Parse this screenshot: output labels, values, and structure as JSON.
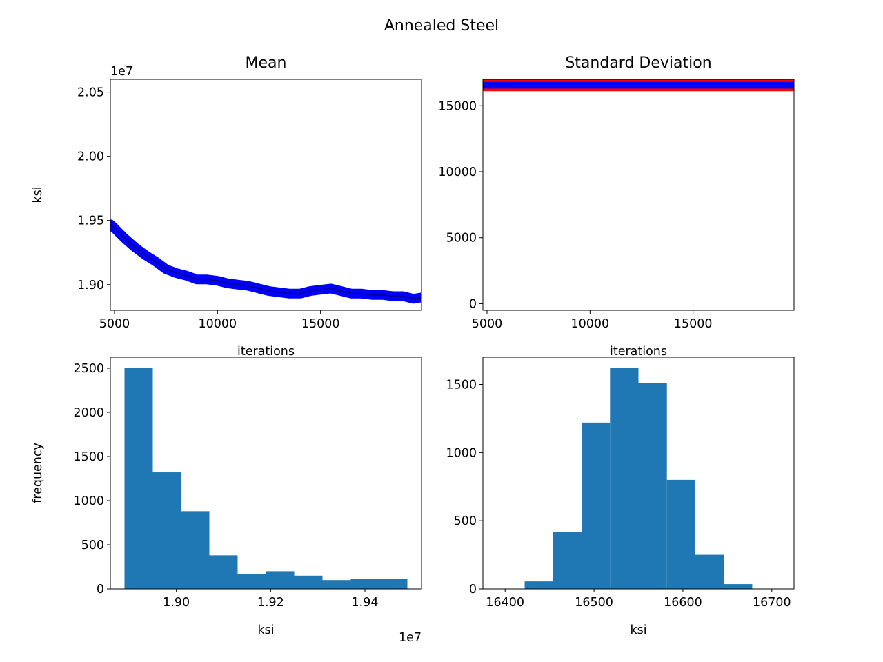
{
  "figure": {
    "suptitle": "Annealed Steel"
  },
  "chart_data": [
    {
      "id": "mean_trace",
      "type": "line",
      "title": "Mean",
      "xlabel": "iterations",
      "ylabel": "ksi",
      "y_offset_text": "1e7",
      "xlim": [
        4800,
        19900
      ],
      "ylim": [
        18800000,
        20600000
      ],
      "xticks": [
        5000,
        10000,
        15000
      ],
      "xtick_labels": [
        "5000",
        "10000",
        "15000"
      ],
      "yticks": [
        19000000,
        19500000,
        20000000,
        20500000
      ],
      "ytick_labels": [
        "1.90",
        "1.95",
        "2.00",
        "2.05"
      ],
      "colors": {
        "trace": "#0000ff"
      },
      "series": [
        {
          "x": [
            4800,
            5000,
            5500,
            6000,
            6500,
            7000,
            7500,
            8000,
            8500,
            9000,
            9500,
            10000,
            10500,
            11000,
            11500,
            12000,
            12500,
            13000,
            13500,
            14000,
            14500,
            15000,
            15500,
            16000,
            16500,
            17000,
            17500,
            18000,
            18500,
            19000,
            19500,
            19900
          ],
          "y": [
            19470000,
            19440000,
            19360000,
            19290000,
            19230000,
            19180000,
            19120000,
            19090000,
            19070000,
            19040000,
            19040000,
            19030000,
            19010000,
            19000000,
            18990000,
            18970000,
            18950000,
            18940000,
            18930000,
            18930000,
            18950000,
            18960000,
            18970000,
            18950000,
            18930000,
            18930000,
            18920000,
            18920000,
            18910000,
            18910000,
            18890000,
            18900000
          ]
        }
      ]
    },
    {
      "id": "std_trace",
      "type": "line",
      "title": "Standard Deviation",
      "xlabel": "iterations",
      "ylabel": "",
      "xlim": [
        4800,
        19900
      ],
      "ylim": [
        -500,
        17000
      ],
      "xticks": [
        5000,
        10000,
        15000
      ],
      "xtick_labels": [
        "5000",
        "10000",
        "15000"
      ],
      "yticks": [
        0,
        5000,
        10000,
        15000
      ],
      "ytick_labels": [
        "0",
        "5000",
        "10000",
        "15000"
      ],
      "colors": {
        "band": "#ff0000",
        "trace": "#0000ff"
      },
      "series": [
        {
          "x": [
            4800,
            19900
          ],
          "y_center": [
            16550,
            16550
          ],
          "band_low": 16100,
          "band_high": 17000,
          "trace_low": 16300,
          "trace_high": 16800
        }
      ]
    },
    {
      "id": "mean_hist",
      "type": "bar",
      "title": "",
      "xlabel": "ksi",
      "ylabel": "frequency",
      "x_offset_text": "1e7",
      "xlim": [
        18860000,
        19520000
      ],
      "ylim": [
        0,
        2625
      ],
      "xticks": [
        19000000,
        19200000,
        19400000
      ],
      "xtick_labels": [
        "1.90",
        "1.92",
        "1.94"
      ],
      "yticks": [
        0,
        500,
        1000,
        1500,
        2000,
        2500
      ],
      "ytick_labels": [
        "0",
        "500",
        "1000",
        "1500",
        "2000",
        "2500"
      ],
      "colors": {
        "bar": "#1f77b4"
      },
      "bin_edges": [
        18890000,
        18950000,
        19010000,
        19070000,
        19130000,
        19190000,
        19250000,
        19310000,
        19370000,
        19430000,
        19490000
      ],
      "values": [
        2500,
        1320,
        880,
        380,
        170,
        200,
        150,
        100,
        110,
        110
      ]
    },
    {
      "id": "std_hist",
      "type": "bar",
      "title": "",
      "xlabel": "ksi",
      "ylabel": "",
      "xlim": [
        16375,
        16725
      ],
      "ylim": [
        0,
        1700
      ],
      "xticks": [
        16400,
        16500,
        16600,
        16700
      ],
      "xtick_labels": [
        "16400",
        "16500",
        "16600",
        "16700"
      ],
      "yticks": [
        0,
        500,
        1000,
        1500
      ],
      "ytick_labels": [
        "0",
        "500",
        "1000",
        "1500"
      ],
      "colors": {
        "bar": "#1f77b4"
      },
      "bin_edges": [
        16390,
        16422,
        16454,
        16486,
        16518,
        16550,
        16582,
        16614,
        16646,
        16678,
        16710
      ],
      "values": [
        0,
        55,
        420,
        1220,
        1620,
        1510,
        800,
        250,
        35,
        0
      ]
    }
  ]
}
